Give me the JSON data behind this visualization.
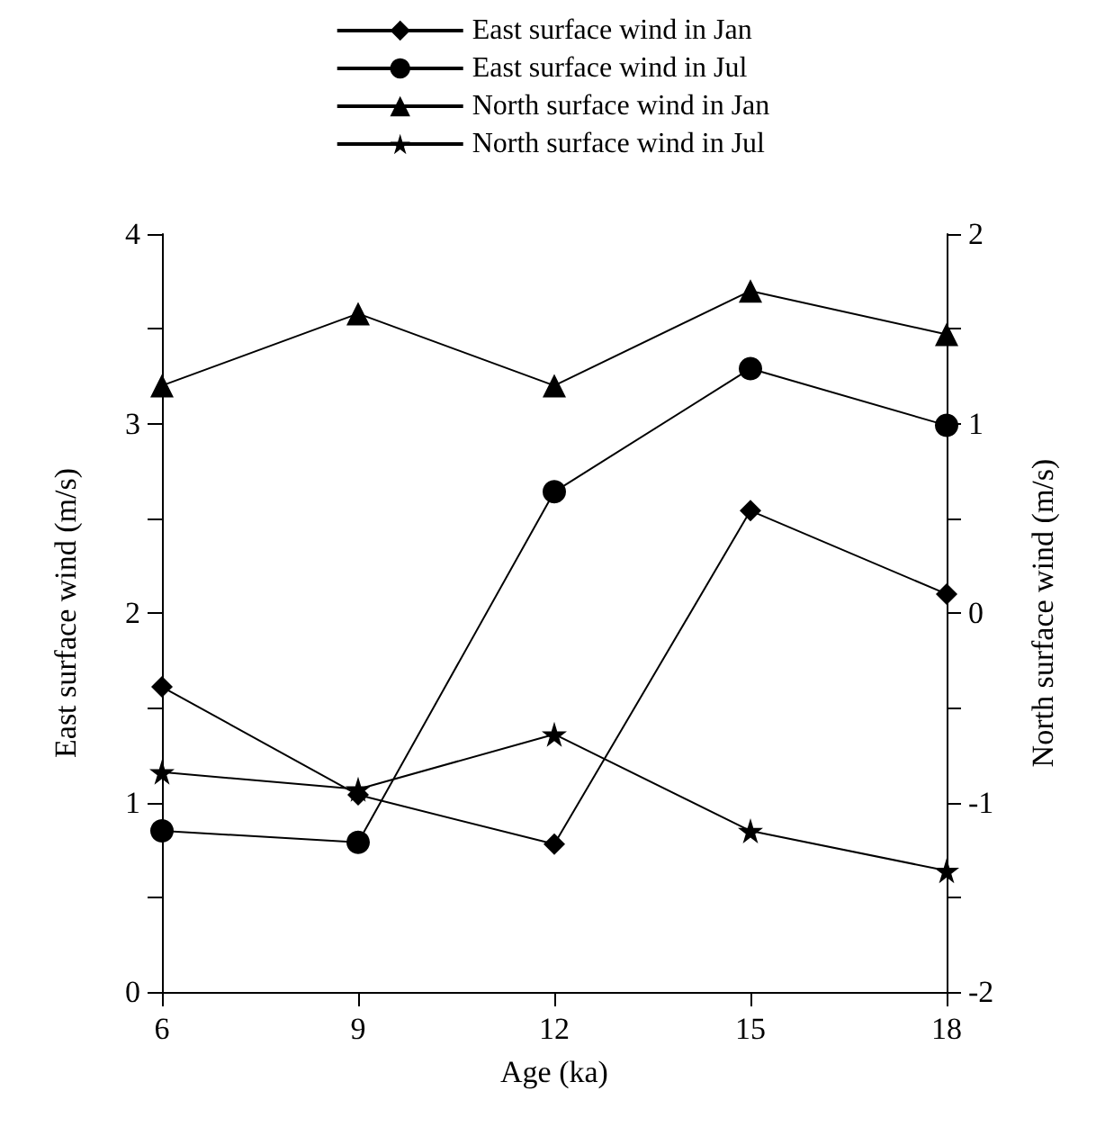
{
  "chart_data": {
    "type": "line",
    "xlabel": "Age (ka)",
    "ylabel": "East surface wind (m/s)",
    "y2label": "North surface wind (m/s)",
    "x": [
      6,
      9,
      12,
      15,
      18
    ],
    "series": [
      {
        "name": "East surface wind in Jan",
        "color": "#000000",
        "marker": "diamond",
        "values": [
          1.61,
          1.04,
          0.78,
          2.54,
          2.1
        ]
      },
      {
        "name": "East surface wind in Jul",
        "color": "#000000",
        "marker": "circle",
        "values": [
          0.85,
          0.79,
          2.64,
          3.29,
          2.99
        ]
      },
      {
        "name": "North surface wind in Jan",
        "color": "#000000",
        "marker": "triangle",
        "axis": "y2",
        "values": [
          1.2,
          1.58,
          1.2,
          1.7,
          1.47
        ]
      },
      {
        "name": "North surface wind in Jul",
        "color": "#000000",
        "marker": "star",
        "axis": "y2",
        "values": [
          -0.84,
          -0.93,
          -0.64,
          -1.15,
          -1.36
        ]
      }
    ],
    "xlim": [
      6,
      18
    ],
    "xticks": [
      6,
      9,
      12,
      15,
      18
    ],
    "ylim": [
      0,
      4
    ],
    "yticks": [
      0,
      {
        "value": 0.5,
        "label": null
      },
      1,
      {
        "value": 1.5,
        "label": null
      },
      2,
      {
        "value": 2.5,
        "label": null
      },
      3,
      {
        "value": 3.5,
        "label": null
      },
      4
    ],
    "y2lim": [
      -2,
      2
    ],
    "y2ticks": [
      -2,
      {
        "value": -1.5,
        "label": null
      },
      -1,
      {
        "value": -0.5,
        "label": null
      },
      0,
      {
        "value": 0.5,
        "label": null
      },
      1,
      {
        "value": 1.5,
        "label": null
      },
      2
    ],
    "legend": "top",
    "grid": false,
    "line_style": "solid"
  }
}
